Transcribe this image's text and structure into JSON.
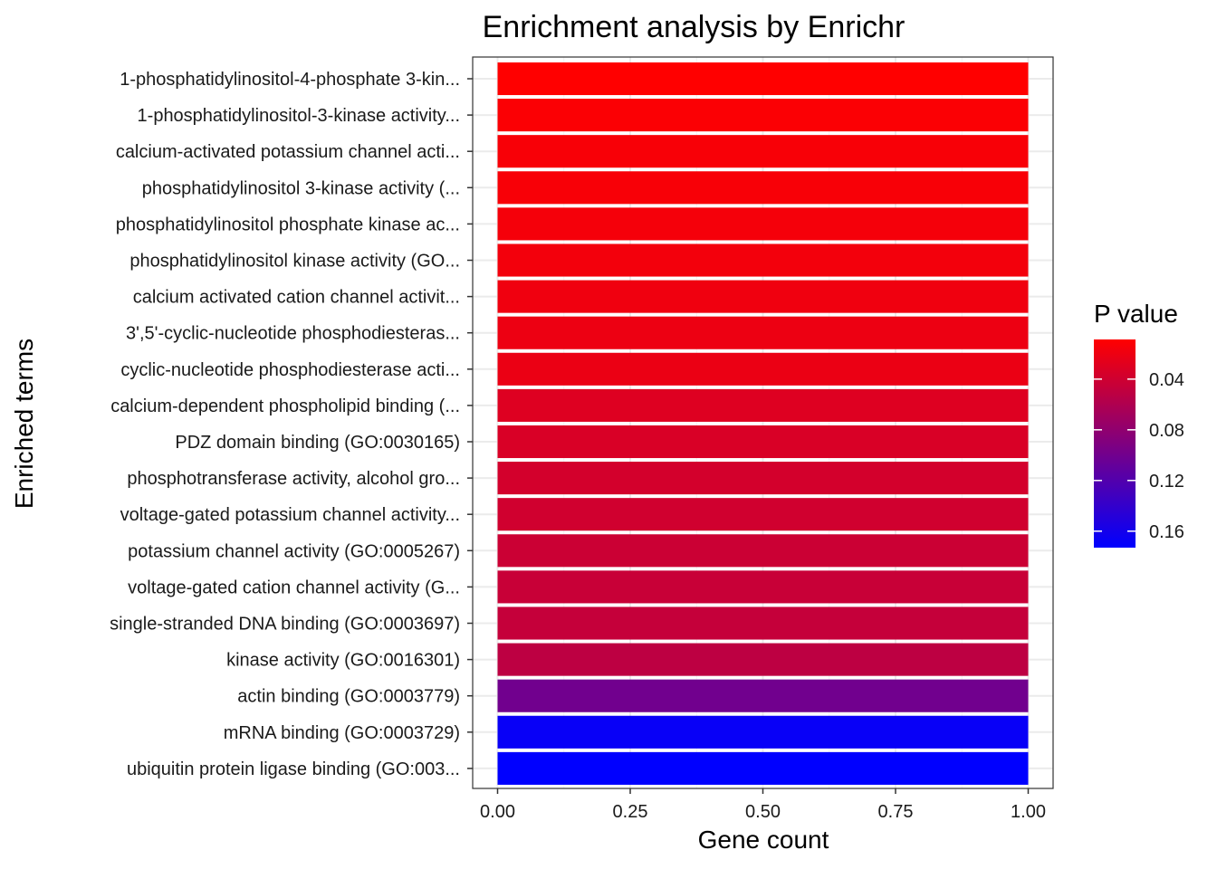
{
  "chart_data": {
    "type": "bar",
    "orientation": "horizontal",
    "title": "Enrichment analysis by Enrichr",
    "xlabel": "Gene count",
    "ylabel": "Enriched terms",
    "xlim": [
      0,
      1
    ],
    "xticks": [
      "0.00",
      "0.25",
      "0.50",
      "0.75",
      "1.00"
    ],
    "grid": true,
    "categories": [
      "1-phosphatidylinositol-4-phosphate 3-kin...",
      "1-phosphatidylinositol-3-kinase activity...",
      "calcium-activated potassium channel acti...",
      "phosphatidylinositol 3-kinase activity (...",
      "phosphatidylinositol phosphate kinase ac...",
      "phosphatidylinositol kinase activity (GO...",
      "calcium activated cation channel activit...",
      "3',5'-cyclic-nucleotide phosphodiesteras...",
      "cyclic-nucleotide phosphodiesterase acti...",
      "calcium-dependent phospholipid binding (...",
      "PDZ domain binding (GO:0030165)",
      "phosphotransferase activity, alcohol gro...",
      "voltage-gated potassium channel activity...",
      "potassium channel activity (GO:0005267)",
      "voltage-gated cation channel activity (G...",
      "single-stranded DNA binding (GO:0003697)",
      "kinase activity (GO:0016301)",
      "actin binding (GO:0003779)",
      "mRNA binding (GO:0003729)",
      "ubiquitin protein ligase binding (GO:003..."
    ],
    "values": [
      1,
      1,
      1,
      1,
      1,
      1,
      1,
      1,
      1,
      1,
      1,
      1,
      1,
      1,
      1,
      1,
      1,
      1,
      1,
      1
    ],
    "pvalues": [
      0.0087,
      0.011,
      0.013,
      0.0135,
      0.015,
      0.0165,
      0.0185,
      0.0205,
      0.0215,
      0.03,
      0.033,
      0.037,
      0.039,
      0.042,
      0.044,
      0.046,
      0.051,
      0.1,
      0.168,
      0.173
    ],
    "legend": {
      "title": "P value",
      "position": "right",
      "range": [
        0.0087,
        0.173
      ],
      "ticks": [
        0.04,
        0.08,
        0.12,
        0.16
      ],
      "tick_labels": [
        "0.04",
        "0.08",
        "0.12",
        "0.16"
      ],
      "low_color": "#ff0000",
      "high_color": "#0000ff"
    }
  }
}
